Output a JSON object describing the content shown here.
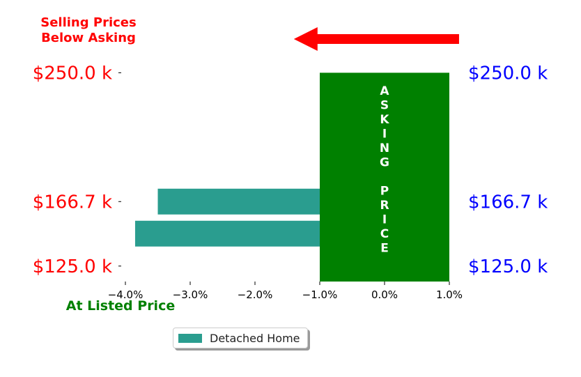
{
  "chart_data": {
    "type": "bar",
    "orientation": "horizontal",
    "series": [
      {
        "name": "Detached Home",
        "color": "#2a9d8f",
        "bars": [
          {
            "price_k": 166.7,
            "pct": -3.5
          },
          {
            "price_k": 150.0,
            "pct": -3.85
          }
        ]
      }
    ],
    "xlim": [
      -4.0,
      1.0
    ],
    "ylim": [
      115.0,
      261.0
    ],
    "x_ticks": [
      "−4.0%",
      "−3.0%",
      "−2.0%",
      "−1.0%",
      "0.0%",
      "1.0%"
    ],
    "x_tick_values": [
      -4.0,
      -3.0,
      -2.0,
      -1.0,
      0.0,
      1.0
    ],
    "y_tick_values": [
      250.0,
      166.7,
      125.0
    ],
    "y_ticks_left": [
      "$250.0 k",
      "$166.7 k",
      "$125.0 k"
    ],
    "y_ticks_right": [
      "$250.0 k",
      "$166.7 k",
      "$125.0 k"
    ],
    "left_tick_color": "#ff0000",
    "right_tick_color": "#0000ff",
    "asking_band": {
      "x_start": -1.0,
      "x_end": 1.0,
      "color": "#008000",
      "text_lines": [
        "A",
        "S",
        "K",
        "I",
        "N",
        "G",
        "",
        "P",
        "R",
        "I",
        "C",
        "E"
      ]
    },
    "annotations": {
      "below_asking_line1": "Selling Prices",
      "below_asking_line2": "Below Asking",
      "below_asking_color": "#ff0000",
      "at_listed": "At Listed Price",
      "at_listed_color": "#008000",
      "arrow_color": "#ff0000",
      "arrow_from_pct": 1.15,
      "arrow_to_pct": -1.4
    },
    "legend": {
      "position": "bottom-center",
      "entries": [
        "Detached Home"
      ]
    },
    "grid": false
  }
}
